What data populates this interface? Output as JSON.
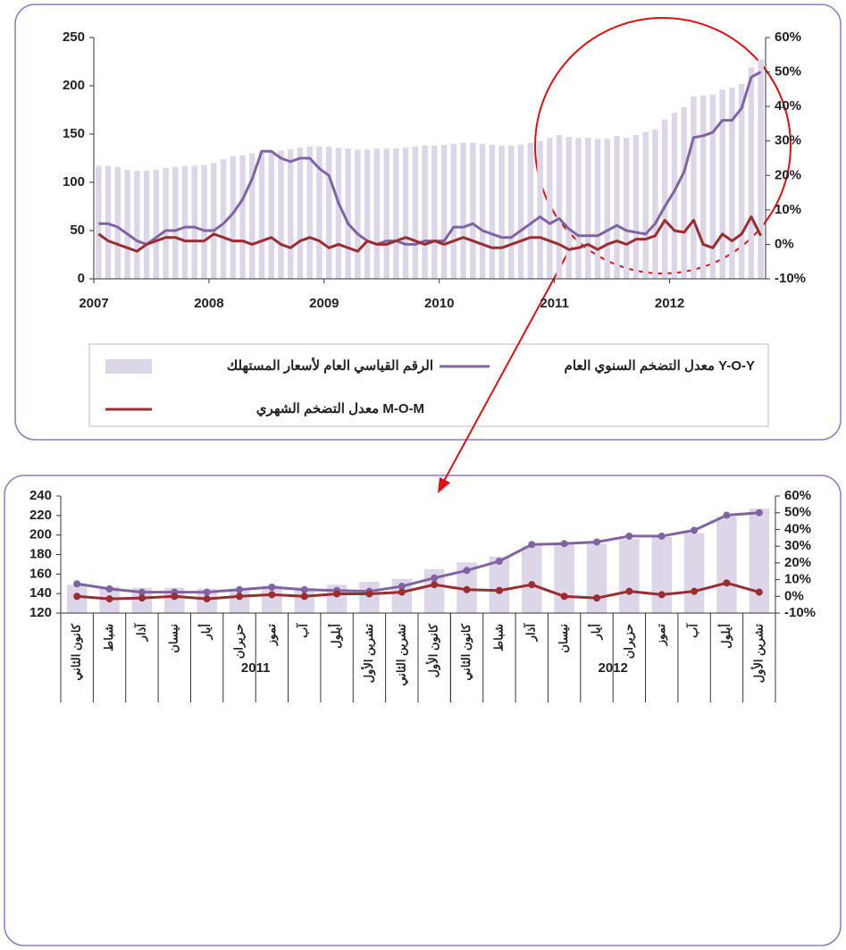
{
  "chart_data": [
    {
      "type": "combo",
      "categories": [
        "2007",
        null,
        null,
        null,
        null,
        null,
        null,
        null,
        null,
        null,
        null,
        null,
        "2008",
        null,
        null,
        null,
        null,
        null,
        null,
        null,
        null,
        null,
        null,
        null,
        "2009",
        null,
        null,
        null,
        null,
        null,
        null,
        null,
        null,
        null,
        null,
        null,
        "2010",
        null,
        null,
        null,
        null,
        null,
        null,
        null,
        null,
        null,
        null,
        null,
        "2011",
        null,
        null,
        null,
        null,
        null,
        null,
        null,
        null,
        null,
        null,
        null,
        "2012",
        null,
        null,
        null,
        null,
        null,
        null,
        null,
        null,
        null
      ],
      "ylim": [
        0,
        250
      ],
      "yticks": [
        0,
        50,
        100,
        150,
        200,
        250
      ],
      "y2lim": [
        -10,
        60
      ],
      "y2ticks": [
        {
          "value": -10,
          "label": "-10%"
        },
        {
          "value": 0,
          "label": "0%"
        },
        {
          "value": 10,
          "label": "10%"
        },
        {
          "value": 20,
          "label": "20%"
        },
        {
          "value": 30,
          "label": "30%"
        },
        {
          "value": 40,
          "label": "40%"
        },
        {
          "value": 50,
          "label": "50%"
        },
        {
          "value": 60,
          "label": "60%"
        }
      ],
      "legend": "bottom",
      "series": [
        {
          "name": "الرقم القياسي العام لأسعار المستهلك",
          "type": "bar",
          "color": "#dcd6e8",
          "values": [
            117,
            117,
            116,
            113,
            112,
            112,
            113,
            115,
            116,
            117,
            117,
            118,
            120,
            124,
            127,
            128,
            130,
            132,
            133,
            133,
            134,
            136,
            137,
            137,
            137,
            136,
            135,
            134,
            134,
            135,
            135,
            135,
            136,
            137,
            138,
            138,
            139,
            140,
            141,
            141,
            140,
            139,
            138,
            138,
            139,
            141,
            143,
            146,
            149,
            147,
            146,
            146,
            145,
            145,
            148,
            146,
            149,
            152,
            155,
            165,
            172,
            178,
            189,
            190,
            191,
            196,
            198,
            202,
            219,
            227
          ]
        },
        {
          "name": "معدل التضخم السنوي العام Y-O-Y",
          "type": "line",
          "axis": "y2",
          "color": "#8064a2",
          "values": [
            6,
            6,
            5,
            3,
            1,
            0,
            2,
            4,
            4,
            5,
            5,
            4,
            4,
            6,
            9,
            13,
            19,
            27,
            27,
            25,
            24,
            25,
            25,
            22,
            20,
            12,
            6,
            3,
            1,
            0,
            1,
            1,
            0,
            0,
            1,
            1,
            1,
            5,
            5,
            6,
            4,
            3,
            2,
            2,
            4,
            6,
            8,
            6,
            7.5,
            4.5,
            2.5,
            2.5,
            2.5,
            4,
            5.5,
            4,
            3.5,
            3,
            6,
            11,
            15.5,
            21,
            31,
            31.5,
            32.5,
            36,
            36,
            39.5,
            48.5,
            50
          ]
        },
        {
          "name": "معدل التضخم الشهري  M-O-M",
          "type": "line",
          "axis": "y2",
          "color": "#9b2d30",
          "values": [
            3,
            1,
            0,
            -1,
            -2,
            0,
            1,
            2,
            2,
            1,
            1,
            1,
            3,
            2,
            1,
            1,
            0,
            1,
            2,
            0,
            -1,
            1,
            2,
            1,
            -1,
            0,
            -1,
            -2,
            1,
            0,
            0,
            1,
            2,
            1,
            0,
            1,
            0,
            1,
            2,
            1,
            0,
            -1,
            -1,
            0,
            1,
            2,
            2,
            1,
            0,
            -1.5,
            -1,
            0,
            -1.5,
            0,
            1,
            0,
            1.5,
            1.5,
            2.5,
            7,
            4,
            3.5,
            7,
            0,
            -1,
            3,
            1,
            3,
            8,
            2.5
          ]
        }
      ]
    },
    {
      "type": "combo",
      "categories": [
        "كانون الثاني",
        "شباط",
        "آذار",
        "نيسان",
        "أيار",
        "حزيران",
        "تموز",
        "آب",
        "أيلول",
        "تشرين الأول",
        "تشرين الثاني",
        "كانون الأول",
        "كانون الثاني",
        "شباط",
        "آذار",
        "نيسان",
        "أيار",
        "حزيران",
        "تموز",
        "آب",
        "أيلول",
        "تشرين الأول"
      ],
      "groups": [
        {
          "label": "2011",
          "span": 12
        },
        {
          "label": "2012",
          "span": 10
        }
      ],
      "ylim": [
        120,
        240
      ],
      "yticks": [
        120,
        140,
        160,
        180,
        200,
        220,
        240
      ],
      "y2lim": [
        -10,
        60
      ],
      "y2ticks": [
        {
          "value": -10,
          "label": "-10%"
        },
        {
          "value": 0,
          "label": "0%"
        },
        {
          "value": 10,
          "label": "10%"
        },
        {
          "value": 20,
          "label": "20%"
        },
        {
          "value": 30,
          "label": "30%"
        },
        {
          "value": 40,
          "label": "40%"
        },
        {
          "value": 50,
          "label": "50%"
        },
        {
          "value": 60,
          "label": "60%"
        }
      ],
      "markers": true,
      "series": [
        {
          "type": "bar",
          "color": "#dcd6e8",
          "values": [
            149,
            147,
            146,
            146,
            145,
            145,
            148,
            146,
            149,
            152,
            155,
            165,
            172,
            178,
            189,
            190,
            191,
            196,
            198,
            202,
            219,
            227
          ]
        },
        {
          "type": "line",
          "axis": "y2",
          "color": "#8064a2",
          "values": [
            7.5,
            4.5,
            2.5,
            2.5,
            2.5,
            4,
            5.5,
            4,
            3.5,
            3,
            6,
            11,
            15.5,
            21,
            31,
            31.5,
            32.5,
            36,
            36,
            39.5,
            48.5,
            50
          ]
        },
        {
          "type": "line",
          "axis": "y2",
          "color": "#9b2d30",
          "values": [
            0,
            -1.5,
            -1,
            0,
            -1.5,
            0,
            1,
            0,
            1.5,
            1.5,
            2.5,
            7,
            4,
            3.5,
            7,
            0,
            -1,
            3,
            1,
            3,
            8,
            2.5
          ]
        }
      ]
    }
  ]
}
